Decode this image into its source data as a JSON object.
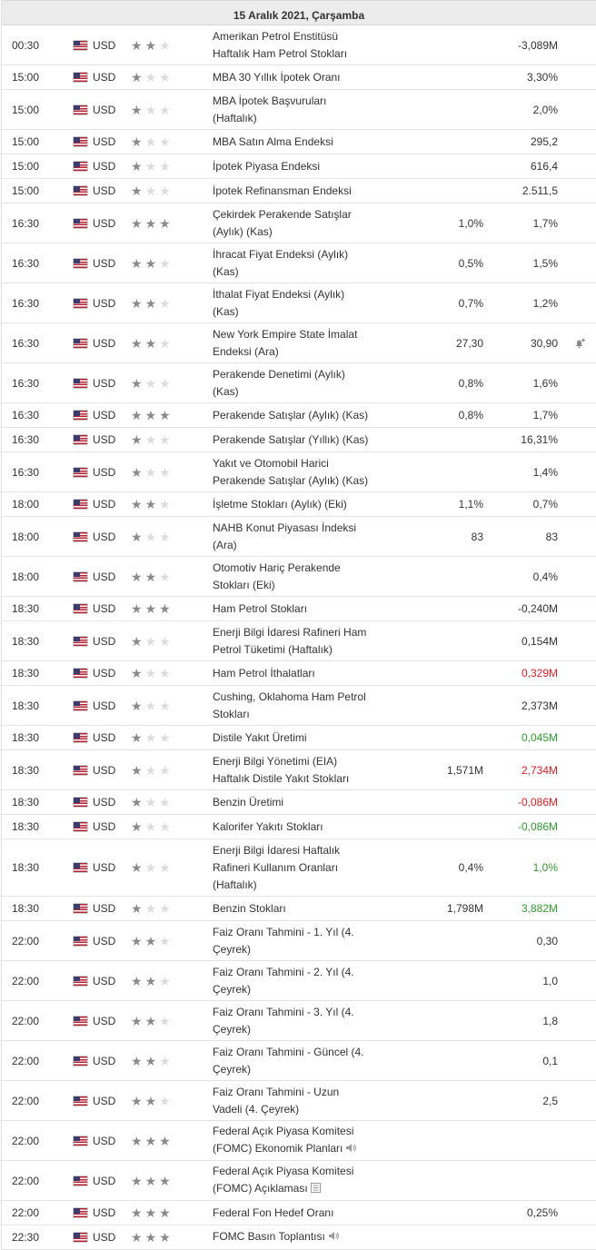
{
  "day_header": "15 Aralık 2021, Çarşamba",
  "rows": [
    {
      "time": "00:30",
      "currency": "USD",
      "stars": 2,
      "event_lines": [
        "Amerikan Petrol Enstitüsü",
        "Haftalık Ham Petrol Stokları"
      ],
      "forecast": "",
      "actual": "-3,089M",
      "actual_color": "",
      "h": 43
    },
    {
      "time": "15:00",
      "currency": "USD",
      "stars": 1,
      "event_lines": [
        "MBA 30 Yıllık İpotek Oranı"
      ],
      "forecast": "",
      "actual": "3,30%",
      "actual_color": "",
      "h": 26
    },
    {
      "time": "15:00",
      "currency": "USD",
      "stars": 1,
      "event_lines": [
        "MBA İpotek Başvuruları",
        "(Haftalık)"
      ],
      "forecast": "",
      "actual": "2,0%",
      "actual_color": "",
      "h": 43
    },
    {
      "time": "15:00",
      "currency": "USD",
      "stars": 1,
      "event_lines": [
        "MBA Satın Alma Endeksi"
      ],
      "forecast": "",
      "actual": "295,2",
      "actual_color": "",
      "h": 26
    },
    {
      "time": "15:00",
      "currency": "USD",
      "stars": 1,
      "event_lines": [
        "İpotek Piyasa Endeksi"
      ],
      "forecast": "",
      "actual": "616,4",
      "actual_color": "",
      "h": 26
    },
    {
      "time": "15:00",
      "currency": "USD",
      "stars": 1,
      "event_lines": [
        "İpotek Refinansman Endeksi"
      ],
      "forecast": "",
      "actual": "2.511,5",
      "actual_color": "",
      "h": 26
    },
    {
      "time": "16:30",
      "currency": "USD",
      "stars": 3,
      "event_lines": [
        "Çekirdek Perakende Satışlar",
        "(Aylık) (Kas)"
      ],
      "forecast": "1,0%",
      "actual": "1,7%",
      "actual_color": "",
      "h": 43
    },
    {
      "time": "16:30",
      "currency": "USD",
      "stars": 2,
      "event_lines": [
        "İhracat Fiyat Endeksi (Aylık)",
        "(Kas)"
      ],
      "forecast": "0,5%",
      "actual": "1,5%",
      "actual_color": "",
      "h": 43
    },
    {
      "time": "16:30",
      "currency": "USD",
      "stars": 2,
      "event_lines": [
        "İthalat Fiyat Endeksi (Aylık)",
        "(Kas)"
      ],
      "forecast": "0,7%",
      "actual": "1,2%",
      "actual_color": "",
      "h": 43
    },
    {
      "time": "16:30",
      "currency": "USD",
      "stars": 2,
      "event_lines": [
        "New York Empire State İmalat",
        "Endeksi (Ara)"
      ],
      "forecast": "27,30",
      "actual": "30,90",
      "actual_color": "",
      "h": 43,
      "alert": true
    },
    {
      "time": "16:30",
      "currency": "USD",
      "stars": 1,
      "event_lines": [
        "Perakende Denetimi (Aylık)",
        "(Kas)"
      ],
      "forecast": "0,8%",
      "actual": "1,6%",
      "actual_color": "",
      "h": 43
    },
    {
      "time": "16:30",
      "currency": "USD",
      "stars": 3,
      "event_lines": [
        "Perakende Satışlar (Aylık) (Kas)"
      ],
      "forecast": "0,8%",
      "actual": "1,7%",
      "actual_color": "",
      "h": 26
    },
    {
      "time": "16:30",
      "currency": "USD",
      "stars": 1,
      "event_lines": [
        "Perakende Satışlar (Yıllık) (Kas)"
      ],
      "forecast": "",
      "actual": "16,31%",
      "actual_color": "",
      "h": 26
    },
    {
      "time": "16:30",
      "currency": "USD",
      "stars": 1,
      "event_lines": [
        "Yakıt ve Otomobil Harici",
        "Perakende Satışlar (Aylık) (Kas)"
      ],
      "forecast": "",
      "actual": "1,4%",
      "actual_color": "",
      "h": 43
    },
    {
      "time": "18:00",
      "currency": "USD",
      "stars": 2,
      "event_lines": [
        "İşletme Stokları (Aylık) (Eki)"
      ],
      "forecast": "1,1%",
      "actual": "0,7%",
      "actual_color": "",
      "h": 26
    },
    {
      "time": "18:00",
      "currency": "USD",
      "stars": 1,
      "event_lines": [
        "NAHB Konut Piyasası İndeksi",
        "(Ara)"
      ],
      "forecast": "83",
      "actual": "83",
      "actual_color": "",
      "h": 43
    },
    {
      "time": "18:00",
      "currency": "USD",
      "stars": 2,
      "event_lines": [
        "Otomotiv Hariç Perakende",
        "Stokları (Eki)"
      ],
      "forecast": "",
      "actual": "0,4%",
      "actual_color": "",
      "h": 43
    },
    {
      "time": "18:30",
      "currency": "USD",
      "stars": 3,
      "event_lines": [
        "Ham Petrol Stokları"
      ],
      "forecast": "",
      "actual": "-0,240M",
      "actual_color": "",
      "h": 26
    },
    {
      "time": "18:30",
      "currency": "USD",
      "stars": 1,
      "event_lines": [
        "Enerji Bilgi İdaresi Rafineri Ham",
        "Petrol Tüketimi (Haftalık)"
      ],
      "forecast": "",
      "actual": "0,154M",
      "actual_color": "",
      "h": 43
    },
    {
      "time": "18:30",
      "currency": "USD",
      "stars": 1,
      "event_lines": [
        "Ham Petrol İthalatları"
      ],
      "forecast": "",
      "actual": "0,329M",
      "actual_color": "neg",
      "h": 26
    },
    {
      "time": "18:30",
      "currency": "USD",
      "stars": 1,
      "event_lines": [
        "Cushing, Oklahoma Ham Petrol",
        "Stokları"
      ],
      "forecast": "",
      "actual": "2,373M",
      "actual_color": "",
      "h": 43
    },
    {
      "time": "18:30",
      "currency": "USD",
      "stars": 1,
      "event_lines": [
        "Distile Yakıt Üretimi"
      ],
      "forecast": "",
      "actual": "0,045M",
      "actual_color": "pos",
      "h": 26
    },
    {
      "time": "18:30",
      "currency": "USD",
      "stars": 1,
      "event_lines": [
        "Enerji Bilgi Yönetimi (EIA)",
        "Haftalık Distile Yakıt Stokları"
      ],
      "forecast": "1,571M",
      "actual": "2,734M",
      "actual_color": "neg",
      "h": 43
    },
    {
      "time": "18:30",
      "currency": "USD",
      "stars": 1,
      "event_lines": [
        "Benzin Üretimi"
      ],
      "forecast": "",
      "actual": "-0,086M",
      "actual_color": "neg",
      "h": 26
    },
    {
      "time": "18:30",
      "currency": "USD",
      "stars": 1,
      "event_lines": [
        "Kalorifer Yakıtı Stokları"
      ],
      "forecast": "",
      "actual": "-0,086M",
      "actual_color": "pos",
      "h": 26
    },
    {
      "time": "18:30",
      "currency": "USD",
      "stars": 1,
      "event_lines": [
        "Enerji Bilgi İdaresi Haftalık",
        "Rafineri Kullanım Oranları",
        "(Haftalık)"
      ],
      "forecast": "0,4%",
      "actual": "1,0%",
      "actual_color": "pos",
      "h": 62
    },
    {
      "time": "18:30",
      "currency": "USD",
      "stars": 1,
      "event_lines": [
        "Benzin Stokları"
      ],
      "forecast": "1,798M",
      "actual": "3,882M",
      "actual_color": "pos",
      "h": 26
    },
    {
      "time": "22:00",
      "currency": "USD",
      "stars": 2,
      "event_lines": [
        "Faiz Oranı Tahmini - 1. Yıl (4.",
        "Çeyrek)"
      ],
      "forecast": "",
      "actual": "0,30",
      "actual_color": "",
      "h": 43
    },
    {
      "time": "22:00",
      "currency": "USD",
      "stars": 2,
      "event_lines": [
        "Faiz Oranı Tahmini - 2. Yıl (4.",
        "Çeyrek)"
      ],
      "forecast": "",
      "actual": "1,0",
      "actual_color": "",
      "h": 43
    },
    {
      "time": "22:00",
      "currency": "USD",
      "stars": 2,
      "event_lines": [
        "Faiz Oranı Tahmini - 3. Yıl (4.",
        "Çeyrek)"
      ],
      "forecast": "",
      "actual": "1,8",
      "actual_color": "",
      "h": 43
    },
    {
      "time": "22:00",
      "currency": "USD",
      "stars": 2,
      "event_lines": [
        "Faiz Oranı Tahmini - Güncel (4.",
        "Çeyrek)"
      ],
      "forecast": "",
      "actual": "0,1",
      "actual_color": "",
      "h": 43
    },
    {
      "time": "22:00",
      "currency": "USD",
      "stars": 2,
      "event_lines": [
        "Faiz Oranı Tahmini - Uzun",
        "Vadeli (4. Çeyrek)"
      ],
      "forecast": "",
      "actual": "2,5",
      "actual_color": "",
      "h": 43
    },
    {
      "time": "22:00",
      "currency": "USD",
      "stars": 3,
      "event_lines": [
        "Federal Açık Piyasa Komitesi",
        "(FOMC) Ekonomik Planları"
      ],
      "forecast": "",
      "actual": "",
      "actual_color": "",
      "h": 43,
      "icon": "speaker"
    },
    {
      "time": "22:00",
      "currency": "USD",
      "stars": 3,
      "event_lines": [
        "Federal Açık Piyasa Komitesi",
        "(FOMC) Açıklaması"
      ],
      "forecast": "",
      "actual": "",
      "actual_color": "",
      "h": 43,
      "icon": "document"
    },
    {
      "time": "22:00",
      "currency": "USD",
      "stars": 3,
      "event_lines": [
        "Federal Fon Hedef Oranı"
      ],
      "forecast": "",
      "actual": "0,25%",
      "actual_color": "",
      "h": 26
    },
    {
      "time": "22:30",
      "currency": "USD",
      "stars": 3,
      "event_lines": [
        "FOMC Basın Toplantısı"
      ],
      "forecast": "",
      "actual": "",
      "actual_color": "",
      "h": 26,
      "icon": "speaker"
    }
  ]
}
